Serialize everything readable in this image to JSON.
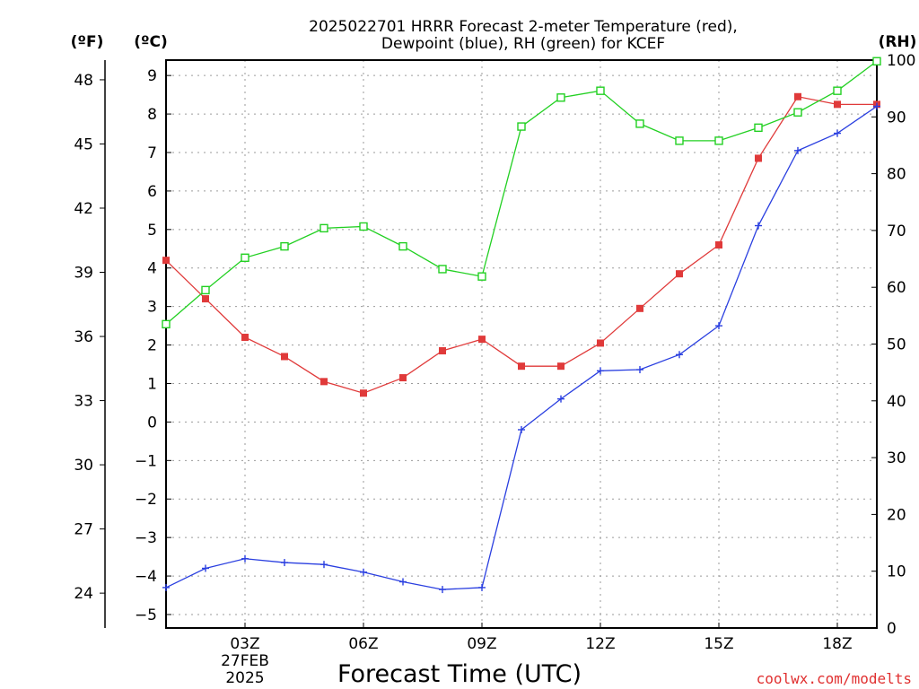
{
  "title_line1": "2025022701 HRRR Forecast 2-meter Temperature (red),",
  "title_line2": "Dewpoint (blue), RH (green) for KCEF",
  "credit": "coolwx.com/modelts",
  "chart_data": {
    "type": "line",
    "title": "2025022701 HRRR Forecast 2-meter Temperature (red), Dewpoint (blue), RH (green) for KCEF",
    "xlabel": "Forecast Time (UTC)",
    "x_hours": [
      1,
      2,
      3,
      4,
      5,
      6,
      7,
      8,
      9,
      10,
      11,
      12,
      13,
      14,
      15,
      16,
      17,
      18,
      19
    ],
    "x_ticks": [
      {
        "hour": 3,
        "label": "03Z",
        "sub": [
          "27FEB",
          "2025"
        ]
      },
      {
        "hour": 6,
        "label": "06Z",
        "sub": []
      },
      {
        "hour": 9,
        "label": "09Z",
        "sub": []
      },
      {
        "hour": 12,
        "label": "12Z",
        "sub": []
      },
      {
        "hour": 15,
        "label": "15Z",
        "sub": []
      },
      {
        "hour": 18,
        "label": "18Z",
        "sub": []
      }
    ],
    "xlim": [
      1,
      19
    ],
    "left_axis": {
      "unit_label": "(ºC)",
      "ylim": [
        -5.35,
        9.4
      ],
      "ticks": [
        -5,
        -4,
        -3,
        -2,
        -1,
        0,
        1,
        2,
        3,
        4,
        5,
        6,
        7,
        8,
        9
      ]
    },
    "far_left_axis": {
      "unit_label": "(ºF)",
      "ticks": [
        24,
        27,
        30,
        33,
        36,
        39,
        42,
        45,
        48
      ]
    },
    "right_axis": {
      "unit_label": "(RH)",
      "ylim": [
        0,
        100
      ],
      "ticks": [
        0,
        10,
        20,
        30,
        40,
        50,
        60,
        70,
        80,
        90,
        100
      ]
    },
    "grid": true,
    "series": [
      {
        "color": "#e03a3a",
        "marker": "square-filled",
        "axis": "left",
        "values": [
          4.2,
          3.2,
          2.2,
          1.7,
          1.05,
          0.75,
          1.15,
          1.85,
          2.15,
          1.45,
          1.45,
          2.05,
          2.95,
          3.85,
          4.6,
          6.85,
          8.45,
          8.25,
          8.25
        ]
      },
      {
        "color": "#2a3fe0",
        "marker": "plus",
        "axis": "left",
        "values": [
          -4.3,
          -3.8,
          -3.55,
          -3.65,
          -3.7,
          -3.9,
          -4.15,
          -4.35,
          -4.3,
          -0.2,
          0.6,
          1.33,
          1.36,
          1.75,
          2.5,
          5.1,
          7.05,
          7.5,
          8.2
        ]
      },
      {
        "color": "#22d022",
        "marker": "square-open",
        "axis": "right",
        "values": [
          53.5,
          59.5,
          65.2,
          67.2,
          70.4,
          70.7,
          67.2,
          63.2,
          61.9,
          88.3,
          93.4,
          94.6,
          88.8,
          85.8,
          85.8,
          88.1,
          90.8,
          94.6,
          99.8
        ]
      }
    ]
  }
}
